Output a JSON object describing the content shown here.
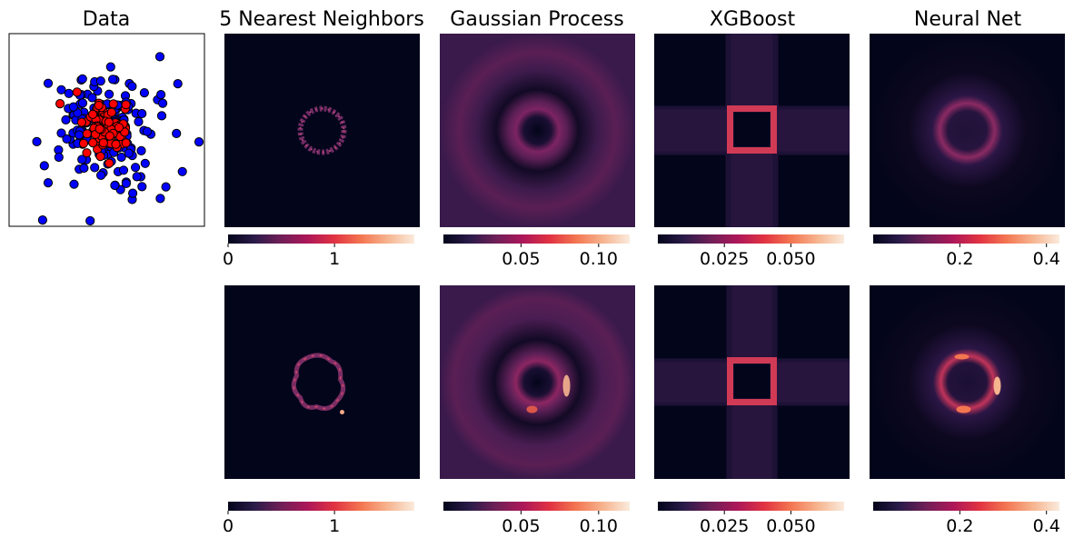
{
  "chart_data": [
    {
      "type": "scatter",
      "title": "Data",
      "series": [
        {
          "name": "",
          "color": "#0000ff",
          "center": [
            0,
            0
          ],
          "spread": 1.0,
          "count": 180
        },
        {
          "name": "",
          "color": "#ff0000",
          "center": [
            0,
            0
          ],
          "spread": 0.35,
          "count": 90
        }
      ],
      "point_edge_color": "#000000",
      "axes_visible": false
    },
    {
      "type": "heatmap",
      "title": "5 Nearest Neighbors",
      "rows": [
        {
          "pattern": "knn-ring",
          "vmin": 0,
          "vmax": 1.75,
          "cbar_ticks": [
            0,
            1
          ],
          "cbar_labels": [
            "0",
            "1"
          ]
        },
        {
          "pattern": "knn-blob",
          "vmin": 0,
          "vmax": 1.75,
          "cbar_ticks": [
            0,
            1
          ],
          "cbar_labels": [
            "0",
            "1"
          ]
        }
      ]
    },
    {
      "type": "heatmap",
      "title": "Gaussian Process",
      "rows": [
        {
          "pattern": "gp-ring",
          "vmin": 0,
          "vmax": 0.12,
          "cbar_ticks": [
            0.05,
            0.1
          ],
          "cbar_labels": [
            "0.05",
            "0.10"
          ]
        },
        {
          "pattern": "gp-ring-bright",
          "vmin": 0,
          "vmax": 0.12,
          "cbar_ticks": [
            0.05,
            0.1
          ],
          "cbar_labels": [
            "0.05",
            "0.10"
          ]
        }
      ]
    },
    {
      "type": "heatmap",
      "title": "XGBoost",
      "rows": [
        {
          "pattern": "xgb-square",
          "vmin": 0,
          "vmax": 0.07,
          "cbar_ticks": [
            0.025,
            0.05
          ],
          "cbar_labels": [
            "0.025",
            "0.050"
          ]
        },
        {
          "pattern": "xgb-square-2",
          "vmin": 0,
          "vmax": 0.07,
          "cbar_ticks": [
            0.025,
            0.05
          ],
          "cbar_labels": [
            "0.025",
            "0.050"
          ]
        }
      ]
    },
    {
      "type": "heatmap",
      "title": "Neural Net",
      "rows": [
        {
          "pattern": "nn-ring",
          "vmin": 0,
          "vmax": 0.43,
          "cbar_ticks": [
            0.2,
            0.4
          ],
          "cbar_labels": [
            "0.2",
            "0.4"
          ]
        },
        {
          "pattern": "nn-ring-bright",
          "vmin": 0,
          "vmax": 0.43,
          "cbar_ticks": [
            0.2,
            0.4
          ],
          "cbar_labels": [
            "0.2",
            "0.4"
          ]
        }
      ]
    }
  ],
  "colormap": [
    "#03051a",
    "#2b1b4a",
    "#701f57",
    "#ad1759",
    "#e13342",
    "#f37651",
    "#f6b48f",
    "#faebdd"
  ]
}
